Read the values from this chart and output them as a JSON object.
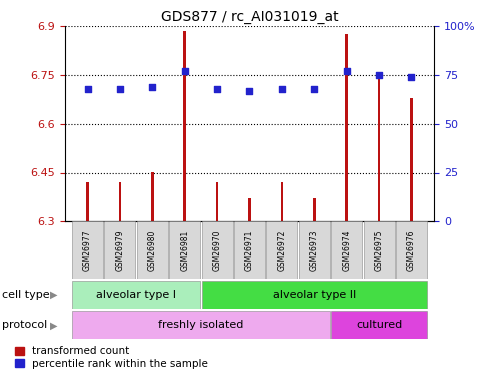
{
  "title": "GDS877 / rc_AI031019_at",
  "samples": [
    "GSM26977",
    "GSM26979",
    "GSM26980",
    "GSM26981",
    "GSM26970",
    "GSM26971",
    "GSM26972",
    "GSM26973",
    "GSM26974",
    "GSM26975",
    "GSM26976"
  ],
  "transformed_counts": [
    6.42,
    6.42,
    6.45,
    6.885,
    6.42,
    6.37,
    6.42,
    6.37,
    6.875,
    6.75,
    6.68
  ],
  "percentile_ranks": [
    68,
    68,
    69,
    77,
    68,
    67,
    68,
    68,
    77,
    75,
    74
  ],
  "ylim_left": [
    6.3,
    6.9
  ],
  "ylim_right": [
    0,
    100
  ],
  "yticks_left": [
    6.3,
    6.45,
    6.6,
    6.75,
    6.9
  ],
  "yticks_right": [
    0,
    25,
    50,
    75,
    100
  ],
  "ytick_labels_left": [
    "6.3",
    "6.45",
    "6.6",
    "6.75",
    "6.9"
  ],
  "ytick_labels_right": [
    "0",
    "25",
    "50",
    "75",
    "100%"
  ],
  "bar_color": "#bb1111",
  "scatter_color": "#2222cc",
  "cell_type_labels": [
    "alveolar type I",
    "alveolar type II"
  ],
  "cell_type_color_type1": "#aaeebb",
  "cell_type_color_type2": "#44dd44",
  "protocol_labels": [
    "freshly isolated",
    "cultured"
  ],
  "protocol_color_fresh": "#eeaaee",
  "protocol_color_cultured": "#dd44dd",
  "background_color": "#ffffff",
  "legend_red_label": "transformed count",
  "legend_blue_label": "percentile rank within the sample",
  "bar_baseline": 6.3,
  "bar_width": 0.08
}
